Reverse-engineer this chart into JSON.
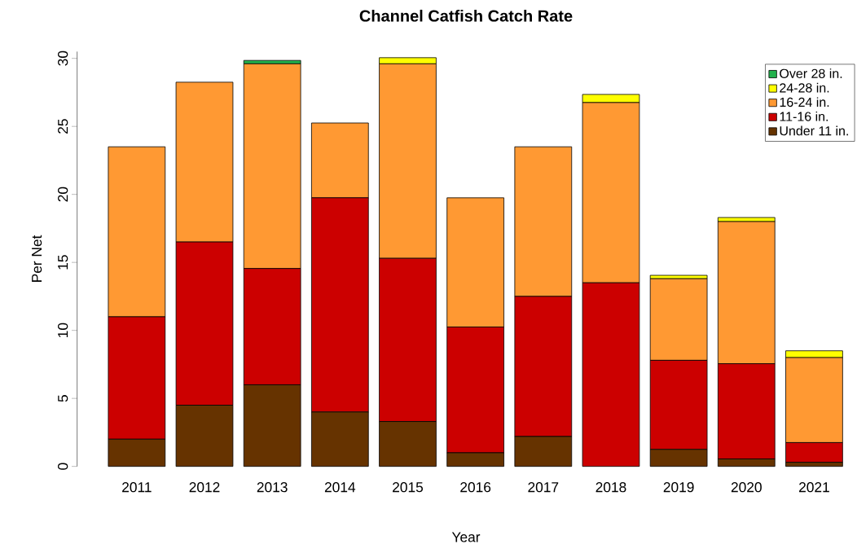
{
  "chart_data": {
    "type": "bar",
    "title": "Channel Catfish Catch Rate",
    "xlabel": "Year",
    "ylabel": "Per Net",
    "categories": [
      "2011",
      "2012",
      "2013",
      "2014",
      "2015",
      "2016",
      "2017",
      "2018",
      "2019",
      "2020",
      "2021"
    ],
    "stacked": true,
    "ylim": [
      0,
      30.5
    ],
    "yticks": [
      0,
      5,
      10,
      15,
      20,
      25,
      30
    ],
    "legend": "top right",
    "grid": false,
    "series": [
      {
        "name": "Under 11 in.",
        "color": "#663300",
        "values": [
          2.0,
          4.5,
          6.0,
          4.0,
          3.3,
          1.0,
          2.2,
          0,
          1.25,
          0.55,
          0.3
        ]
      },
      {
        "name": "11-16 in.",
        "color": "#cc0000",
        "values": [
          9.0,
          12.0,
          8.55,
          15.75,
          12.0,
          9.25,
          10.3,
          13.5,
          6.55,
          7.0,
          1.45
        ]
      },
      {
        "name": "16-24 in.",
        "color": "#ff9933",
        "values": [
          12.5,
          11.75,
          15.05,
          5.5,
          14.3,
          9.5,
          11.0,
          13.25,
          6.0,
          10.45,
          6.25
        ]
      },
      {
        "name": "24-28 in.",
        "color": "#ffff00",
        "values": [
          0,
          0,
          0,
          0,
          0.45,
          0,
          0,
          0.6,
          0.25,
          0.3,
          0.5
        ]
      },
      {
        "name": "Over 28 in.",
        "color": "#22b14c",
        "values": [
          0,
          0,
          0.25,
          0,
          0,
          0,
          0,
          0,
          0,
          0,
          0
        ]
      }
    ]
  }
}
